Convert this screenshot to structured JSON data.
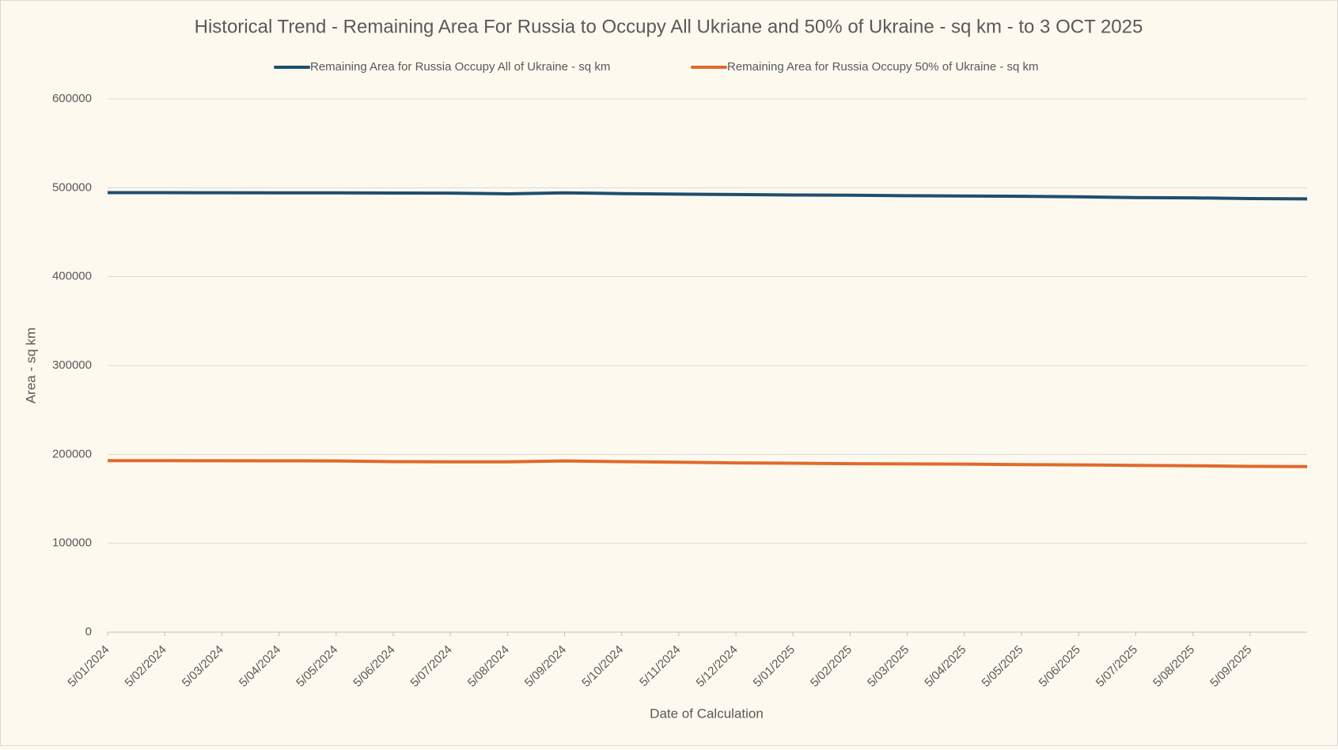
{
  "chart_data": {
    "type": "line",
    "title": "Historical Trend - Remaining Area For Russia to Occupy All Ukriane and 50% of Ukraine - sq km - to 3 OCT 2025",
    "x_label": "Date of Calculation",
    "y_label": "Area - sq km",
    "categories": [
      "5/01/2024",
      "5/02/2024",
      "5/03/2024",
      "5/04/2024",
      "5/05/2024",
      "5/06/2024",
      "5/07/2024",
      "5/08/2024",
      "5/09/2024",
      "5/10/2024",
      "5/11/2024",
      "5/12/2024",
      "5/01/2025",
      "5/02/2025",
      "5/03/2025",
      "5/04/2025",
      "5/05/2025",
      "5/06/2025",
      "5/07/2025",
      "5/08/2025",
      "5/09/2025",
      null
    ],
    "series": [
      {
        "name": "Remaining Area for Russia Occupy All of Ukraine - sq km",
        "color": "#1f4e6e",
        "values": [
          494500,
          494500,
          494400,
          494300,
          494200,
          494100,
          494000,
          493200,
          494300,
          493400,
          492800,
          492400,
          491800,
          491600,
          491000,
          490700,
          490400,
          489800,
          489000,
          488600,
          487800,
          487500
        ]
      },
      {
        "name": "Remaining Area for Russia Occupy 50% of Ukraine - sq km",
        "color": "#e06a2c",
        "values": [
          192900,
          192900,
          192800,
          192700,
          192600,
          191800,
          191700,
          191600,
          192600,
          191800,
          191200,
          190400,
          190100,
          189500,
          189300,
          189100,
          188500,
          188200,
          187600,
          187200,
          186500,
          186200
        ]
      }
    ],
    "ylim": [
      0,
      600000
    ],
    "yticks": [
      0,
      100000,
      200000,
      300000,
      400000,
      500000,
      600000
    ],
    "grid": true,
    "legend": "top"
  }
}
